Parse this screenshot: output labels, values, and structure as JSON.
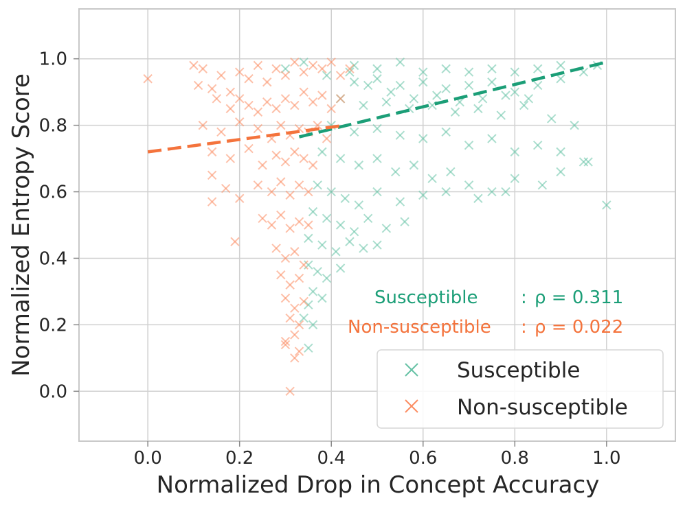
{
  "chart_data": {
    "type": "scatter",
    "title": "",
    "xlabel": "Normalized Drop in Concept Accuracy",
    "ylabel": "Normalized Entropy Score",
    "xlim": [
      -0.15,
      1.15
    ],
    "ylim": [
      -0.15,
      1.15
    ],
    "x_ticks": [
      0.0,
      0.2,
      0.4,
      0.6,
      0.8,
      1.0
    ],
    "x_tick_labels": [
      "0.0",
      "0.2",
      "0.4",
      "0.6",
      "0.8",
      "1.0"
    ],
    "y_ticks": [
      0.0,
      0.2,
      0.4,
      0.6,
      0.8,
      1.0
    ],
    "y_tick_labels": [
      "0.0",
      "0.2",
      "0.4",
      "0.6",
      "0.8",
      "1.0"
    ],
    "grid": true,
    "legend_position": "bottom-right",
    "marker": "x",
    "colors": {
      "susceptible": "#66c2a5",
      "susceptible_fit": "#1b9e77",
      "non_susceptible": "#fc8d62",
      "non_susceptible_fit": "#f4733c",
      "grid": "#d0d0d0",
      "frame": "#c8c8c8"
    },
    "series": [
      {
        "name": "Susceptible",
        "color": "#66c2a5",
        "fit_line": {
          "x": [
            0.33,
            1.0
          ],
          "y": [
            0.765,
            0.99
          ]
        },
        "points": [
          [
            0.45,
            0.98
          ],
          [
            0.5,
            0.97
          ],
          [
            0.55,
            0.99
          ],
          [
            0.6,
            0.96
          ],
          [
            0.65,
            0.97
          ],
          [
            0.7,
            0.96
          ],
          [
            0.75,
            0.97
          ],
          [
            0.8,
            0.96
          ],
          [
            0.85,
            0.97
          ],
          [
            0.9,
            0.98
          ],
          [
            0.95,
            0.96
          ],
          [
            0.98,
            0.98
          ],
          [
            0.45,
            0.93
          ],
          [
            0.5,
            0.94
          ],
          [
            0.55,
            0.92
          ],
          [
            0.6,
            0.93
          ],
          [
            0.65,
            0.91
          ],
          [
            0.7,
            0.92
          ],
          [
            0.75,
            0.93
          ],
          [
            0.8,
            0.9
          ],
          [
            0.85,
            0.92
          ],
          [
            0.9,
            0.94
          ],
          [
            0.42,
            0.88
          ],
          [
            0.47,
            0.86
          ],
          [
            0.52,
            0.87
          ],
          [
            0.57,
            0.85
          ],
          [
            0.62,
            0.86
          ],
          [
            0.67,
            0.84
          ],
          [
            0.72,
            0.85
          ],
          [
            0.77,
            0.83
          ],
          [
            0.82,
            0.86
          ],
          [
            0.88,
            0.82
          ],
          [
            0.4,
            0.8
          ],
          [
            0.45,
            0.78
          ],
          [
            0.5,
            0.79
          ],
          [
            0.55,
            0.77
          ],
          [
            0.6,
            0.76
          ],
          [
            0.65,
            0.78
          ],
          [
            0.7,
            0.74
          ],
          [
            0.75,
            0.76
          ],
          [
            0.8,
            0.72
          ],
          [
            0.85,
            0.74
          ],
          [
            0.9,
            0.72
          ],
          [
            0.95,
            0.69
          ],
          [
            0.38,
            0.72
          ],
          [
            0.42,
            0.7
          ],
          [
            0.46,
            0.68
          ],
          [
            0.5,
            0.7
          ],
          [
            0.54,
            0.66
          ],
          [
            0.58,
            0.68
          ],
          [
            0.62,
            0.64
          ],
          [
            0.66,
            0.66
          ],
          [
            0.7,
            0.62
          ],
          [
            0.75,
            0.6
          ],
          [
            0.8,
            0.64
          ],
          [
            0.86,
            0.62
          ],
          [
            0.9,
            0.66
          ],
          [
            0.37,
            0.62
          ],
          [
            0.4,
            0.6
          ],
          [
            0.43,
            0.58
          ],
          [
            0.46,
            0.56
          ],
          [
            0.5,
            0.6
          ],
          [
            0.55,
            0.57
          ],
          [
            0.6,
            0.59
          ],
          [
            0.65,
            0.6
          ],
          [
            0.72,
            0.58
          ],
          [
            0.78,
            0.6
          ],
          [
            1.0,
            0.56
          ],
          [
            0.36,
            0.54
          ],
          [
            0.39,
            0.52
          ],
          [
            0.42,
            0.5
          ],
          [
            0.45,
            0.48
          ],
          [
            0.48,
            0.52
          ],
          [
            0.52,
            0.49
          ],
          [
            0.56,
            0.51
          ],
          [
            0.35,
            0.46
          ],
          [
            0.38,
            0.44
          ],
          [
            0.41,
            0.42
          ],
          [
            0.44,
            0.45
          ],
          [
            0.47,
            0.43
          ],
          [
            0.5,
            0.44
          ],
          [
            0.35,
            0.38
          ],
          [
            0.37,
            0.36
          ],
          [
            0.39,
            0.34
          ],
          [
            0.42,
            0.37
          ],
          [
            0.36,
            0.3
          ],
          [
            0.38,
            0.28
          ],
          [
            0.35,
            0.26
          ],
          [
            0.34,
            0.22
          ],
          [
            0.36,
            0.2
          ],
          [
            0.35,
            0.13
          ],
          [
            0.3,
            0.97
          ],
          [
            0.34,
            0.99
          ],
          [
            0.39,
            0.95
          ],
          [
            0.44,
            0.96
          ],
          [
            0.48,
            0.92
          ],
          [
            0.53,
            0.9
          ],
          [
            0.58,
            0.88
          ],
          [
            0.63,
            0.89
          ],
          [
            0.68,
            0.87
          ],
          [
            0.73,
            0.88
          ],
          [
            0.78,
            0.89
          ],
          [
            0.83,
            0.88
          ],
          [
            0.93,
            0.8
          ],
          [
            0.96,
            0.69
          ]
        ]
      },
      {
        "name": "Non-susceptible",
        "color": "#fc8d62",
        "fit_line": {
          "x": [
            0.0,
            0.43
          ],
          "y": [
            0.72,
            0.8
          ]
        },
        "points": [
          [
            0.0,
            0.94
          ],
          [
            0.1,
            0.98
          ],
          [
            0.11,
            0.92
          ],
          [
            0.12,
            0.97
          ],
          [
            0.14,
            0.91
          ],
          [
            0.16,
            0.95
          ],
          [
            0.18,
            0.9
          ],
          [
            0.2,
            0.96
          ],
          [
            0.22,
            0.94
          ],
          [
            0.24,
            0.98
          ],
          [
            0.26,
            0.93
          ],
          [
            0.28,
            0.97
          ],
          [
            0.3,
            0.95
          ],
          [
            0.32,
            0.99
          ],
          [
            0.34,
            0.96
          ],
          [
            0.36,
            0.98
          ],
          [
            0.38,
            0.97
          ],
          [
            0.4,
            0.99
          ],
          [
            0.42,
            0.95
          ],
          [
            0.44,
            0.97
          ],
          [
            0.15,
            0.88
          ],
          [
            0.18,
            0.85
          ],
          [
            0.2,
            0.88
          ],
          [
            0.22,
            0.86
          ],
          [
            0.24,
            0.84
          ],
          [
            0.26,
            0.87
          ],
          [
            0.28,
            0.85
          ],
          [
            0.3,
            0.88
          ],
          [
            0.32,
            0.86
          ],
          [
            0.34,
            0.9
          ],
          [
            0.36,
            0.87
          ],
          [
            0.38,
            0.89
          ],
          [
            0.4,
            0.85
          ],
          [
            0.42,
            0.88
          ],
          [
            0.12,
            0.8
          ],
          [
            0.16,
            0.78
          ],
          [
            0.2,
            0.81
          ],
          [
            0.24,
            0.79
          ],
          [
            0.27,
            0.76
          ],
          [
            0.29,
            0.8
          ],
          [
            0.31,
            0.77
          ],
          [
            0.33,
            0.79
          ],
          [
            0.35,
            0.78
          ],
          [
            0.37,
            0.8
          ],
          [
            0.39,
            0.76
          ],
          [
            0.14,
            0.72
          ],
          [
            0.18,
            0.7
          ],
          [
            0.22,
            0.73
          ],
          [
            0.25,
            0.68
          ],
          [
            0.28,
            0.71
          ],
          [
            0.3,
            0.69
          ],
          [
            0.32,
            0.72
          ],
          [
            0.34,
            0.7
          ],
          [
            0.36,
            0.68
          ],
          [
            0.14,
            0.65
          ],
          [
            0.17,
            0.61
          ],
          [
            0.2,
            0.58
          ],
          [
            0.14,
            0.57
          ],
          [
            0.24,
            0.62
          ],
          [
            0.27,
            0.6
          ],
          [
            0.29,
            0.63
          ],
          [
            0.31,
            0.59
          ],
          [
            0.33,
            0.62
          ],
          [
            0.35,
            0.6
          ],
          [
            0.19,
            0.45
          ],
          [
            0.25,
            0.52
          ],
          [
            0.27,
            0.5
          ],
          [
            0.29,
            0.53
          ],
          [
            0.31,
            0.49
          ],
          [
            0.33,
            0.51
          ],
          [
            0.35,
            0.5
          ],
          [
            0.28,
            0.43
          ],
          [
            0.3,
            0.4
          ],
          [
            0.32,
            0.42
          ],
          [
            0.34,
            0.38
          ],
          [
            0.29,
            0.35
          ],
          [
            0.31,
            0.32
          ],
          [
            0.33,
            0.34
          ],
          [
            0.3,
            0.28
          ],
          [
            0.32,
            0.25
          ],
          [
            0.34,
            0.27
          ],
          [
            0.31,
            0.22
          ],
          [
            0.33,
            0.2
          ],
          [
            0.32,
            0.17
          ],
          [
            0.3,
            0.15
          ],
          [
            0.3,
            0.14
          ],
          [
            0.33,
            0.12
          ],
          [
            0.32,
            0.1
          ],
          [
            0.31,
            0.0
          ]
        ]
      }
    ],
    "annotations": [
      {
        "label": "Susceptible",
        "sep": ":",
        "stat": "ρ = 0.311",
        "color": "#1b9e77"
      },
      {
        "label": "Non-susceptible",
        "sep": ":",
        "stat": "ρ = 0.022",
        "color": "#f4733c"
      }
    ],
    "legend": [
      {
        "label": "Susceptible",
        "color": "#66c2a5",
        "marker": "x"
      },
      {
        "label": "Non-susceptible",
        "color": "#fc8d62",
        "marker": "x"
      }
    ]
  }
}
